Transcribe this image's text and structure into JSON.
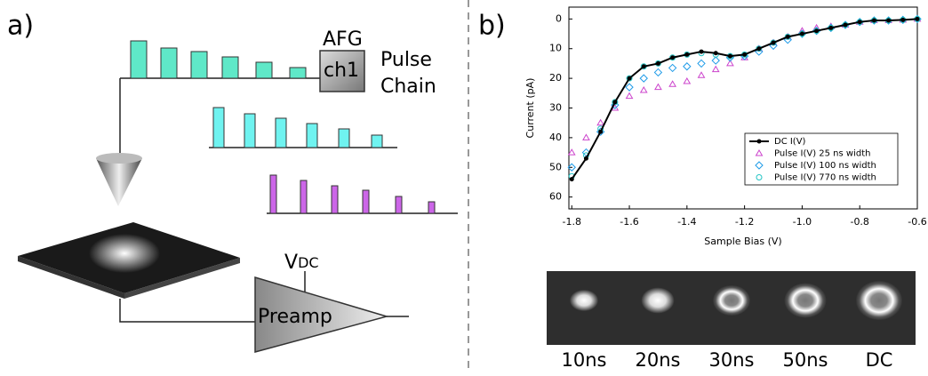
{
  "panel_a": {
    "label": "a)",
    "afg": "AFG",
    "channel": "ch1",
    "pulse": "Pulse",
    "chain": "Chain",
    "vdc": {
      "main": "V",
      "sub": "DC"
    },
    "preamp": "Preamp"
  },
  "panel_b": {
    "label": "b)",
    "images": [
      "10ns",
      "20ns",
      "30ns",
      "50ns",
      "DC"
    ]
  },
  "chart_data": {
    "type": "scatter",
    "x_label": "Sample Bias (V)",
    "y_label": "Current (pA)",
    "x": [
      -1.8,
      -1.75,
      -1.7,
      -1.65,
      -1.6,
      -1.55,
      -1.5,
      -1.45,
      -1.4,
      -1.35,
      -1.3,
      -1.25,
      -1.2,
      -1.15,
      -1.1,
      -1.05,
      -1.0,
      -0.95,
      -0.9,
      -0.85,
      -0.8,
      -0.75,
      -0.7,
      -0.65,
      -0.6
    ],
    "series": [
      {
        "name": "DC I(V)",
        "color": "#000000",
        "marker": "line-dot",
        "values": [
          54,
          47,
          38,
          28,
          20,
          16,
          15,
          13,
          12,
          11,
          11.5,
          12.5,
          12,
          10,
          8,
          6,
          5,
          4,
          3,
          2,
          1,
          0.5,
          0.5,
          0.3,
          0
        ]
      },
      {
        "name": "Pulse I(V) 25 ns width",
        "color": "#cc44cc",
        "marker": "triangle",
        "values": [
          45,
          40,
          35,
          30,
          26,
          24,
          23,
          22,
          21,
          19,
          17,
          15,
          13,
          10,
          8,
          6,
          4,
          3,
          2.5,
          2,
          1,
          0.5,
          0.5,
          0.3,
          0
        ]
      },
      {
        "name": "Pulse I(V) 100 ns width",
        "color": "#1e9be8",
        "marker": "diamond",
        "values": [
          50,
          45,
          38,
          29,
          23,
          20,
          18,
          16.5,
          16,
          15,
          14,
          13,
          12.5,
          11,
          9,
          7,
          5,
          4,
          3,
          2,
          1,
          0.5,
          0.5,
          0.3,
          0
        ]
      },
      {
        "name": "Pulse I(V) 770 ns width",
        "color": "#22c4c4",
        "marker": "circle",
        "values": [
          53,
          46,
          37,
          28,
          20,
          16,
          15,
          13,
          12,
          11.5,
          12,
          12.5,
          12,
          10,
          8,
          6,
          5,
          4,
          3,
          2,
          1,
          0.5,
          0.5,
          0.3,
          0
        ]
      }
    ],
    "xlim": [
      -1.81,
      -0.6
    ],
    "ylim": [
      -4,
      64
    ],
    "y_inverted": true,
    "xticks": [
      -1.8,
      -1.6,
      -1.4,
      -1.2,
      {
        "value": -1,
        "label": "-1.0"
      },
      -0.8,
      -0.6
    ],
    "yticks": [
      0,
      10,
      20,
      30,
      40,
      50,
      60
    ]
  }
}
